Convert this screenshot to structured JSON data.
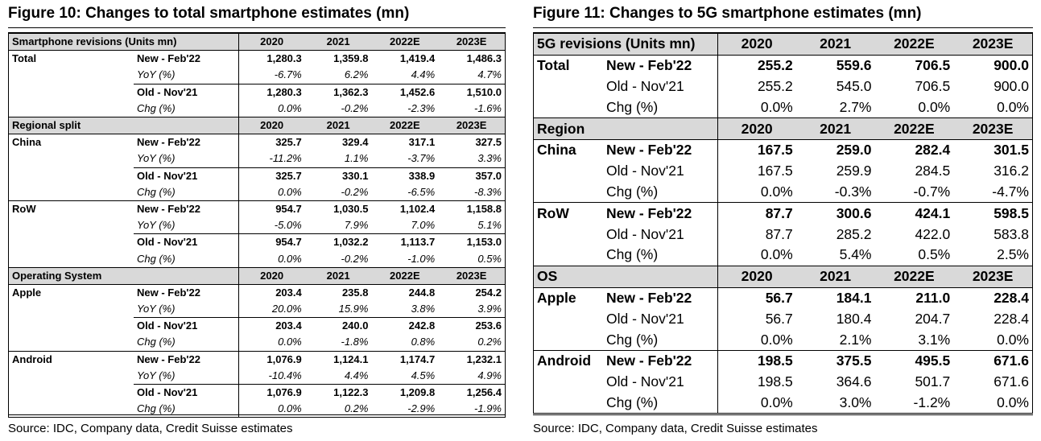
{
  "left": {
    "title": "Figure 10: Changes to total smartphone estimates (mn)",
    "source": "Source: IDC, Company data, Credit Suisse estimates",
    "sections": [
      {
        "header": "Smartphone revisions (Units mn)",
        "years": [
          "2020",
          "2021",
          "2022E",
          "2023E"
        ],
        "groups": [
          {
            "name": "Total",
            "rows": [
              {
                "kind": "new",
                "label": "New - Feb'22",
                "values": [
                  "1,280.3",
                  "1,359.8",
                  "1,419.4",
                  "1,486.3"
                ]
              },
              {
                "kind": "yoy",
                "label": "YoY (%)",
                "values": [
                  "-6.7%",
                  "6.2%",
                  "4.4%",
                  "4.7%"
                ]
              },
              {
                "kind": "old",
                "label": "Old - Nov'21",
                "values": [
                  "1,280.3",
                  "1,362.3",
                  "1,452.6",
                  "1,510.0"
                ]
              },
              {
                "kind": "chg",
                "label": "Chg (%)",
                "values": [
                  "0.0%",
                  "-0.2%",
                  "-2.3%",
                  "-1.6%"
                ]
              }
            ]
          }
        ]
      },
      {
        "header": "Regional split",
        "years": [
          "2020",
          "2021",
          "2022E",
          "2023E"
        ],
        "groups": [
          {
            "name": "China",
            "rows": [
              {
                "kind": "new",
                "label": "New - Feb'22",
                "values": [
                  "325.7",
                  "329.4",
                  "317.1",
                  "327.5"
                ]
              },
              {
                "kind": "yoy",
                "label": "YoY (%)",
                "values": [
                  "-11.2%",
                  "1.1%",
                  "-3.7%",
                  "3.3%"
                ]
              },
              {
                "kind": "old",
                "label": "Old - Nov'21",
                "values": [
                  "325.7",
                  "330.1",
                  "338.9",
                  "357.0"
                ]
              },
              {
                "kind": "chg",
                "label": "Chg (%)",
                "values": [
                  "0.0%",
                  "-0.2%",
                  "-6.5%",
                  "-8.3%"
                ]
              }
            ]
          },
          {
            "name": "RoW",
            "rows": [
              {
                "kind": "new",
                "label": "New - Feb'22",
                "values": [
                  "954.7",
                  "1,030.5",
                  "1,102.4",
                  "1,158.8"
                ]
              },
              {
                "kind": "yoy",
                "label": "YoY (%)",
                "values": [
                  "-5.0%",
                  "7.9%",
                  "7.0%",
                  "5.1%"
                ]
              },
              {
                "kind": "old",
                "label": "Old - Nov'21",
                "values": [
                  "954.7",
                  "1,032.2",
                  "1,113.7",
                  "1,153.0"
                ]
              },
              {
                "kind": "chg",
                "label": "Chg (%)",
                "values": [
                  "0.0%",
                  "-0.2%",
                  "-1.0%",
                  "0.5%"
                ]
              }
            ]
          }
        ]
      },
      {
        "header": "Operating System",
        "years": [
          "2020",
          "2021",
          "2022E",
          "2023E"
        ],
        "groups": [
          {
            "name": "Apple",
            "rows": [
              {
                "kind": "new",
                "label": "New - Feb'22",
                "values": [
                  "203.4",
                  "235.8",
                  "244.8",
                  "254.2"
                ]
              },
              {
                "kind": "yoy",
                "label": "YoY (%)",
                "values": [
                  "20.0%",
                  "15.9%",
                  "3.8%",
                  "3.9%"
                ]
              },
              {
                "kind": "old",
                "label": "Old - Nov'21",
                "values": [
                  "203.4",
                  "240.0",
                  "242.8",
                  "253.6"
                ]
              },
              {
                "kind": "chg",
                "label": "Chg (%)",
                "values": [
                  "0.0%",
                  "-1.8%",
                  "0.8%",
                  "0.2%"
                ]
              }
            ]
          },
          {
            "name": "Android",
            "rows": [
              {
                "kind": "new",
                "label": "New - Feb'22",
                "values": [
                  "1,076.9",
                  "1,124.1",
                  "1,174.7",
                  "1,232.1"
                ]
              },
              {
                "kind": "yoy",
                "label": "YoY (%)",
                "values": [
                  "-10.4%",
                  "4.4%",
                  "4.5%",
                  "4.9%"
                ]
              },
              {
                "kind": "old",
                "label": "Old - Nov'21",
                "values": [
                  "1,076.9",
                  "1,122.3",
                  "1,209.8",
                  "1,256.4"
                ]
              },
              {
                "kind": "chg",
                "label": "Chg (%)",
                "values": [
                  "0.0%",
                  "0.2%",
                  "-2.9%",
                  "-1.9%"
                ]
              }
            ]
          }
        ]
      }
    ]
  },
  "right": {
    "title": "Figure 11: Changes to 5G smartphone estimates (mn)",
    "source": "Source: IDC, Company data, Credit Suisse estimates",
    "sections": [
      {
        "header": "5G revisions (Units mn)",
        "years": [
          "2020",
          "2021",
          "2022E",
          "2023E"
        ],
        "groups": [
          {
            "name": "Total",
            "rows": [
              {
                "kind": "new",
                "label": "New - Feb'22",
                "values": [
                  "255.2",
                  "559.6",
                  "706.5",
                  "900.0"
                ]
              },
              {
                "kind": "old",
                "label": "Old - Nov'21",
                "values": [
                  "255.2",
                  "545.0",
                  "706.5",
                  "900.0"
                ]
              },
              {
                "kind": "chg",
                "label": "Chg (%)",
                "values": [
                  "0.0%",
                  "2.7%",
                  "0.0%",
                  "0.0%"
                ]
              }
            ]
          }
        ]
      },
      {
        "header": "Region",
        "years": [
          "2020",
          "2021",
          "2022E",
          "2023E"
        ],
        "groups": [
          {
            "name": "China",
            "rows": [
              {
                "kind": "new",
                "label": "New - Feb'22",
                "values": [
                  "167.5",
                  "259.0",
                  "282.4",
                  "301.5"
                ]
              },
              {
                "kind": "old",
                "label": "Old - Nov'21",
                "values": [
                  "167.5",
                  "259.9",
                  "284.5",
                  "316.2"
                ]
              },
              {
                "kind": "chg",
                "label": "Chg (%)",
                "values": [
                  "0.0%",
                  "-0.3%",
                  "-0.7%",
                  "-4.7%"
                ]
              }
            ]
          },
          {
            "name": "RoW",
            "rows": [
              {
                "kind": "new",
                "label": "New - Feb'22",
                "values": [
                  "87.7",
                  "300.6",
                  "424.1",
                  "598.5"
                ]
              },
              {
                "kind": "old",
                "label": "Old - Nov'21",
                "values": [
                  "87.7",
                  "285.2",
                  "422.0",
                  "583.8"
                ]
              },
              {
                "kind": "chg",
                "label": "Chg (%)",
                "values": [
                  "0.0%",
                  "5.4%",
                  "0.5%",
                  "2.5%"
                ]
              }
            ]
          }
        ]
      },
      {
        "header": "OS",
        "years": [
          "2020",
          "2021",
          "2022E",
          "2023E"
        ],
        "groups": [
          {
            "name": "Apple",
            "rows": [
              {
                "kind": "new",
                "label": "New - Feb'22",
                "values": [
                  "56.7",
                  "184.1",
                  "211.0",
                  "228.4"
                ]
              },
              {
                "kind": "old",
                "label": "Old - Nov'21",
                "values": [
                  "56.7",
                  "180.4",
                  "204.7",
                  "228.4"
                ]
              },
              {
                "kind": "chg",
                "label": "Chg (%)",
                "values": [
                  "0.0%",
                  "2.1%",
                  "3.1%",
                  "0.0%"
                ]
              }
            ]
          },
          {
            "name": "Android",
            "rows": [
              {
                "kind": "new",
                "label": "New - Feb'22",
                "values": [
                  "198.5",
                  "375.5",
                  "495.5",
                  "671.6"
                ]
              },
              {
                "kind": "old",
                "label": "Old - Nov'21",
                "values": [
                  "198.5",
                  "364.6",
                  "501.7",
                  "671.6"
                ]
              },
              {
                "kind": "chg",
                "label": "Chg (%)",
                "values": [
                  "0.0%",
                  "3.0%",
                  "-1.2%",
                  "0.0%"
                ]
              }
            ]
          }
        ]
      }
    ]
  }
}
